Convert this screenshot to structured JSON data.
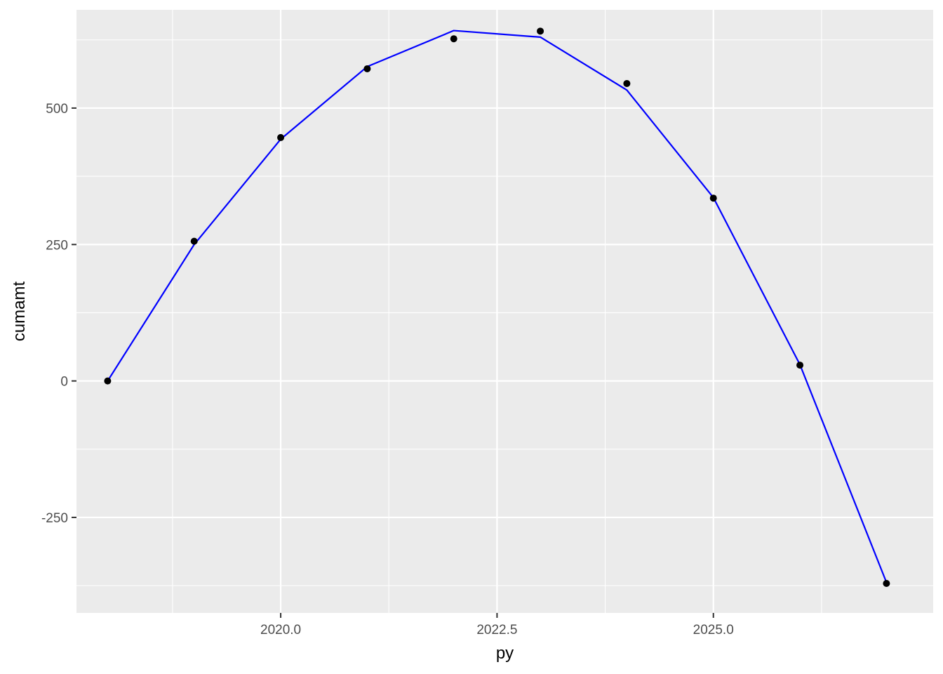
{
  "chart_data": {
    "type": "line",
    "title": "",
    "xlabel": "py",
    "ylabel": "cumamt",
    "xlim": [
      2017.64,
      2027.54
    ],
    "ylim": [
      -425,
      680
    ],
    "x_ticks": [
      2020.0,
      2022.5,
      2025.0
    ],
    "x_tick_labels": [
      "2020.0",
      "2022.5",
      "2025.0"
    ],
    "x_minor_ticks": [
      2018.75,
      2021.25,
      2023.75,
      2026.25
    ],
    "y_ticks": [
      -250,
      0,
      250,
      500
    ],
    "y_tick_labels": [
      "-250",
      "0",
      "250",
      "500"
    ],
    "y_minor_ticks": [
      -375,
      -125,
      125,
      375,
      625
    ],
    "grid": true,
    "legend": "none",
    "series": [
      {
        "kind": "points",
        "color": "#000000",
        "x": [
          2018,
          2019,
          2020,
          2021,
          2022,
          2023,
          2024,
          2025,
          2026,
          2027
        ],
        "y": [
          0,
          256,
          446,
          572,
          627,
          641,
          545,
          335,
          29,
          -371
        ]
      },
      {
        "kind": "line",
        "color": "#0000FF",
        "x": [
          2018,
          2019,
          2020,
          2021,
          2022,
          2023,
          2024,
          2025,
          2026,
          2027
        ],
        "y": [
          0,
          250,
          443,
          576,
          642,
          630,
          533,
          336,
          30,
          -369
        ]
      }
    ]
  },
  "colors": {
    "panel_background": "#EBEBEB",
    "grid_line": "#FFFFFF",
    "tick_text": "#4D4D4D",
    "tick_mark": "#333333",
    "fit_line": "#0000FF",
    "point": "#000000"
  }
}
